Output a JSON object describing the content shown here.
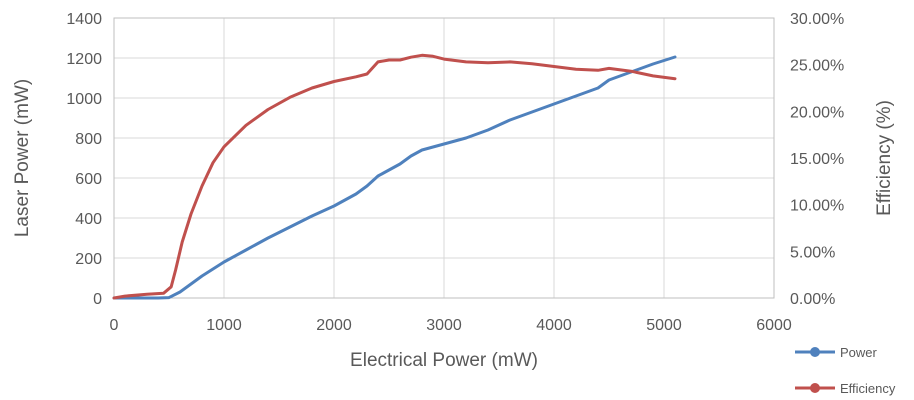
{
  "chart_data": {
    "type": "line",
    "x_label": "Electrical Power (mW)",
    "y_label_left": "Laser Power (mW)",
    "y_label_right": "Efficiency (%)",
    "x_range": [
      0,
      6000
    ],
    "y_left_range": [
      0,
      1400
    ],
    "y_right_range": [
      0,
      30
    ],
    "x_ticks": [
      "0",
      "1000",
      "2000",
      "3000",
      "4000",
      "5000",
      "6000"
    ],
    "y_left_ticks": [
      "0",
      "200",
      "400",
      "600",
      "800",
      "1000",
      "1200",
      "1400"
    ],
    "y_right_ticks": [
      "0.00%",
      "5.00%",
      "10.00%",
      "15.00%",
      "20.00%",
      "25.00%",
      "30.00%"
    ],
    "grid": true,
    "legend_position": "bottom-right",
    "series": [
      {
        "name": "Power",
        "axis": "left",
        "color": "#4f81bd",
        "points": [
          [
            0,
            0
          ],
          [
            200,
            0
          ],
          [
            400,
            0
          ],
          [
            500,
            2
          ],
          [
            600,
            30
          ],
          [
            700,
            70
          ],
          [
            800,
            110
          ],
          [
            1000,
            180
          ],
          [
            1200,
            240
          ],
          [
            1400,
            300
          ],
          [
            1600,
            355
          ],
          [
            1800,
            410
          ],
          [
            2000,
            460
          ],
          [
            2200,
            520
          ],
          [
            2300,
            560
          ],
          [
            2400,
            610
          ],
          [
            2500,
            640
          ],
          [
            2600,
            670
          ],
          [
            2700,
            710
          ],
          [
            2800,
            740
          ],
          [
            3000,
            770
          ],
          [
            3200,
            800
          ],
          [
            3400,
            840
          ],
          [
            3600,
            890
          ],
          [
            3800,
            930
          ],
          [
            4000,
            970
          ],
          [
            4200,
            1010
          ],
          [
            4400,
            1050
          ],
          [
            4500,
            1090
          ],
          [
            4700,
            1130
          ],
          [
            4900,
            1170
          ],
          [
            5100,
            1205
          ]
        ]
      },
      {
        "name": "Efficiency",
        "axis": "right",
        "color": "#c0504d",
        "points": [
          [
            0,
            0
          ],
          [
            100,
            0.2
          ],
          [
            300,
            0.4
          ],
          [
            450,
            0.5
          ],
          [
            520,
            1.2
          ],
          [
            560,
            3
          ],
          [
            620,
            6
          ],
          [
            700,
            9
          ],
          [
            800,
            12
          ],
          [
            900,
            14.5
          ],
          [
            1000,
            16.2
          ],
          [
            1200,
            18.5
          ],
          [
            1400,
            20.2
          ],
          [
            1600,
            21.5
          ],
          [
            1800,
            22.5
          ],
          [
            2000,
            23.2
          ],
          [
            2200,
            23.7
          ],
          [
            2300,
            24
          ],
          [
            2400,
            25.3
          ],
          [
            2500,
            25.5
          ],
          [
            2600,
            25.5
          ],
          [
            2700,
            25.8
          ],
          [
            2800,
            26
          ],
          [
            2900,
            25.9
          ],
          [
            3000,
            25.6
          ],
          [
            3200,
            25.3
          ],
          [
            3400,
            25.2
          ],
          [
            3600,
            25.3
          ],
          [
            3800,
            25.1
          ],
          [
            4000,
            24.8
          ],
          [
            4200,
            24.5
          ],
          [
            4400,
            24.4
          ],
          [
            4500,
            24.6
          ],
          [
            4700,
            24.3
          ],
          [
            4900,
            23.8
          ],
          [
            5100,
            23.5
          ]
        ]
      }
    ]
  }
}
